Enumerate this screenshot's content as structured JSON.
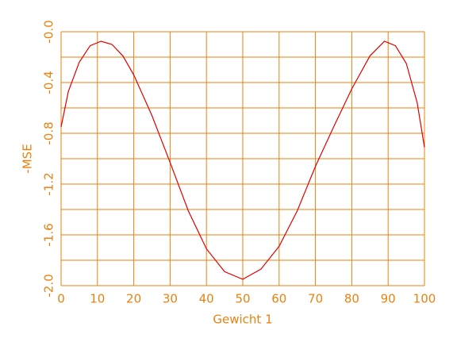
{
  "chart_data": {
    "type": "line",
    "x_label": "Gewicht 1",
    "y_label": "-MSE",
    "x": [
      0,
      2,
      5,
      8,
      11,
      14,
      17,
      20,
      25,
      30,
      35,
      40,
      45,
      50,
      55,
      60,
      65,
      70,
      75,
      80,
      85,
      89,
      92,
      95,
      98,
      100
    ],
    "series": [
      {
        "color": "#e00000",
        "values": [
          -0.75,
          -0.47,
          -0.24,
          -0.11,
          -0.075,
          -0.1,
          -0.19,
          -0.34,
          -0.66,
          -1.03,
          -1.41,
          -1.71,
          -1.89,
          -1.95,
          -1.87,
          -1.69,
          -1.41,
          -1.06,
          -0.75,
          -0.45,
          -0.19,
          -0.075,
          -0.11,
          -0.25,
          -0.56,
          -0.91
        ]
      }
    ],
    "xlim": [
      0,
      100
    ],
    "xticks": [
      0,
      10,
      20,
      30,
      40,
      50,
      60,
      70,
      80,
      90,
      100
    ],
    "ylim": [
      -2,
      0
    ],
    "yticks": [
      {
        "value": -2,
        "label": "-2.0"
      },
      -1.6,
      -1.2,
      -0.8,
      -0.4,
      {
        "value": 0,
        "label": "-0.0"
      }
    ],
    "y_minor_ticks": [
      -1.8,
      -1.4,
      -1,
      -0.6,
      -0.2
    ],
    "grid": true,
    "axis_color": "#e8820f"
  }
}
